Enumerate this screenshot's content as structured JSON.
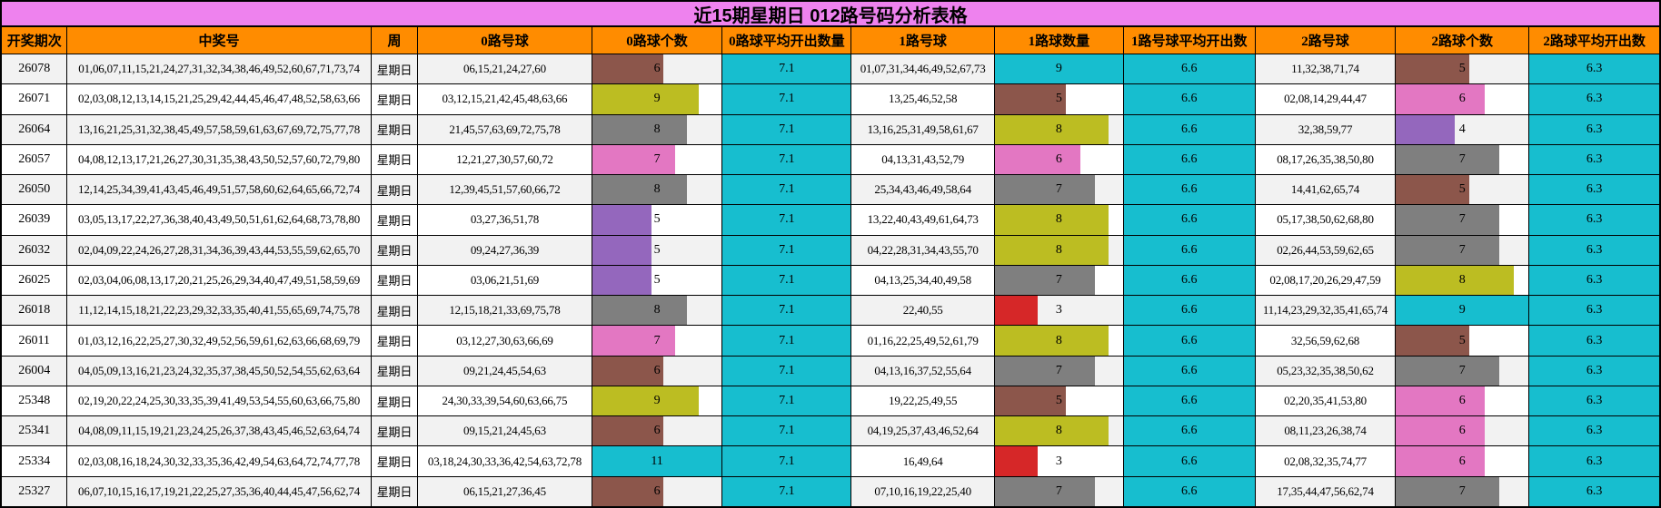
{
  "title": "近15期星期日 012路号码分析表格",
  "colors": {
    "title_bg": "#ee82ee",
    "header_bg": "#ff8c00",
    "row_bg": "#ffffff",
    "row_alt_bg": "#f2f2f2",
    "border": "#000000",
    "text": "#000000",
    "avg_fill": "cyan",
    "palette": {
      "red": "#d62728",
      "purple": "#9467bd",
      "brown": "#8c564b",
      "pink": "#e377c2",
      "gray": "#7f7f7f",
      "olive": "#bcbd22",
      "cyan": "#17becf"
    }
  },
  "bars": {
    "max": {
      "road0": 11,
      "road1": 9,
      "road2": 9
    },
    "cell_colors": [
      [
        "brown",
        "cyan",
        "brown"
      ],
      [
        "olive",
        "brown",
        "pink"
      ],
      [
        "gray",
        "olive",
        "purple"
      ],
      [
        "pink",
        "pink",
        "gray"
      ],
      [
        "gray",
        "gray",
        "brown"
      ],
      [
        "purple",
        "olive",
        "gray"
      ],
      [
        "purple",
        "olive",
        "gray"
      ],
      [
        "purple",
        "gray",
        "olive"
      ],
      [
        "gray",
        "red",
        "cyan"
      ],
      [
        "pink",
        "olive",
        "brown"
      ],
      [
        "brown",
        "gray",
        "gray"
      ],
      [
        "olive",
        "brown",
        "pink"
      ],
      [
        "brown",
        "olive",
        "pink"
      ],
      [
        "cyan",
        "red",
        "pink"
      ],
      [
        "brown",
        "gray",
        "gray"
      ]
    ]
  },
  "chart_data": {
    "type": "table",
    "title": "近15期星期日 012路号码分析表格",
    "columns": [
      "开奖期次",
      "中奖号",
      "周",
      "0路号球",
      "0路球个数",
      "0路球平均开出数量",
      "1路号球",
      "1路球数量",
      "1路号球平均开出数",
      "2路号球",
      "2路球个数",
      "2路球平均开出数"
    ],
    "rows": [
      [
        "26078",
        "01,06,07,11,15,21,24,27,31,32,34,38,46,49,52,60,67,71,73,74",
        "星期日",
        "06,15,21,24,27,60",
        6,
        7.1,
        "01,07,31,34,46,49,52,67,73",
        9,
        6.6,
        "11,32,38,71,74",
        5,
        6.3
      ],
      [
        "26071",
        "02,03,08,12,13,14,15,21,25,29,42,44,45,46,47,48,52,58,63,66",
        "星期日",
        "03,12,15,21,42,45,48,63,66",
        9,
        7.1,
        "13,25,46,52,58",
        5,
        6.6,
        "02,08,14,29,44,47",
        6,
        6.3
      ],
      [
        "26064",
        "13,16,21,25,31,32,38,45,49,57,58,59,61,63,67,69,72,75,77,78",
        "星期日",
        "21,45,57,63,69,72,75,78",
        8,
        7.1,
        "13,16,25,31,49,58,61,67",
        8,
        6.6,
        "32,38,59,77",
        4,
        6.3
      ],
      [
        "26057",
        "04,08,12,13,17,21,26,27,30,31,35,38,43,50,52,57,60,72,79,80",
        "星期日",
        "12,21,27,30,57,60,72",
        7,
        7.1,
        "04,13,31,43,52,79",
        6,
        6.6,
        "08,17,26,35,38,50,80",
        7,
        6.3
      ],
      [
        "26050",
        "12,14,25,34,39,41,43,45,46,49,51,57,58,60,62,64,65,66,72,74",
        "星期日",
        "12,39,45,51,57,60,66,72",
        8,
        7.1,
        "25,34,43,46,49,58,64",
        7,
        6.6,
        "14,41,62,65,74",
        5,
        6.3
      ],
      [
        "26039",
        "03,05,13,17,22,27,36,38,40,43,49,50,51,61,62,64,68,73,78,80",
        "星期日",
        "03,27,36,51,78",
        5,
        7.1,
        "13,22,40,43,49,61,64,73",
        8,
        6.6,
        "05,17,38,50,62,68,80",
        7,
        6.3
      ],
      [
        "26032",
        "02,04,09,22,24,26,27,28,31,34,36,39,43,44,53,55,59,62,65,70",
        "星期日",
        "09,24,27,36,39",
        5,
        7.1,
        "04,22,28,31,34,43,55,70",
        8,
        6.6,
        "02,26,44,53,59,62,65",
        7,
        6.3
      ],
      [
        "26025",
        "02,03,04,06,08,13,17,20,21,25,26,29,34,40,47,49,51,58,59,69",
        "星期日",
        "03,06,21,51,69",
        5,
        7.1,
        "04,13,25,34,40,49,58",
        7,
        6.6,
        "02,08,17,20,26,29,47,59",
        8,
        6.3
      ],
      [
        "26018",
        "11,12,14,15,18,21,22,23,29,32,33,35,40,41,55,65,69,74,75,78",
        "星期日",
        "12,15,18,21,33,69,75,78",
        8,
        7.1,
        "22,40,55",
        3,
        6.6,
        "11,14,23,29,32,35,41,65,74",
        9,
        6.3
      ],
      [
        "26011",
        "01,03,12,16,22,25,27,30,32,49,52,56,59,61,62,63,66,68,69,79",
        "星期日",
        "03,12,27,30,63,66,69",
        7,
        7.1,
        "01,16,22,25,49,52,61,79",
        8,
        6.6,
        "32,56,59,62,68",
        5,
        6.3
      ],
      [
        "26004",
        "04,05,09,13,16,21,23,24,32,35,37,38,45,50,52,54,55,62,63,64",
        "星期日",
        "09,21,24,45,54,63",
        6,
        7.1,
        "04,13,16,37,52,55,64",
        7,
        6.6,
        "05,23,32,35,38,50,62",
        7,
        6.3
      ],
      [
        "25348",
        "02,19,20,22,24,25,30,33,35,39,41,49,53,54,55,60,63,66,75,80",
        "星期日",
        "24,30,33,39,54,60,63,66,75",
        9,
        7.1,
        "19,22,25,49,55",
        5,
        6.6,
        "02,20,35,41,53,80",
        6,
        6.3
      ],
      [
        "25341",
        "04,08,09,11,15,19,21,23,24,25,26,37,38,43,45,46,52,63,64,74",
        "星期日",
        "09,15,21,24,45,63",
        6,
        7.1,
        "04,19,25,37,43,46,52,64",
        8,
        6.6,
        "08,11,23,26,38,74",
        6,
        6.3
      ],
      [
        "25334",
        "02,03,08,16,18,24,30,32,33,35,36,42,49,54,63,64,72,74,77,78",
        "星期日",
        "03,18,24,30,33,36,42,54,63,72,78",
        11,
        7.1,
        "16,49,64",
        3,
        6.6,
        "02,08,32,35,74,77",
        6,
        6.3
      ],
      [
        "25327",
        "06,07,10,15,16,17,19,21,22,25,27,35,36,40,44,45,47,56,62,74",
        "星期日",
        "06,15,21,27,36,45",
        6,
        7.1,
        "07,10,16,19,22,25,40",
        7,
        6.6,
        "17,35,44,47,56,62,74",
        7,
        6.3
      ]
    ]
  }
}
